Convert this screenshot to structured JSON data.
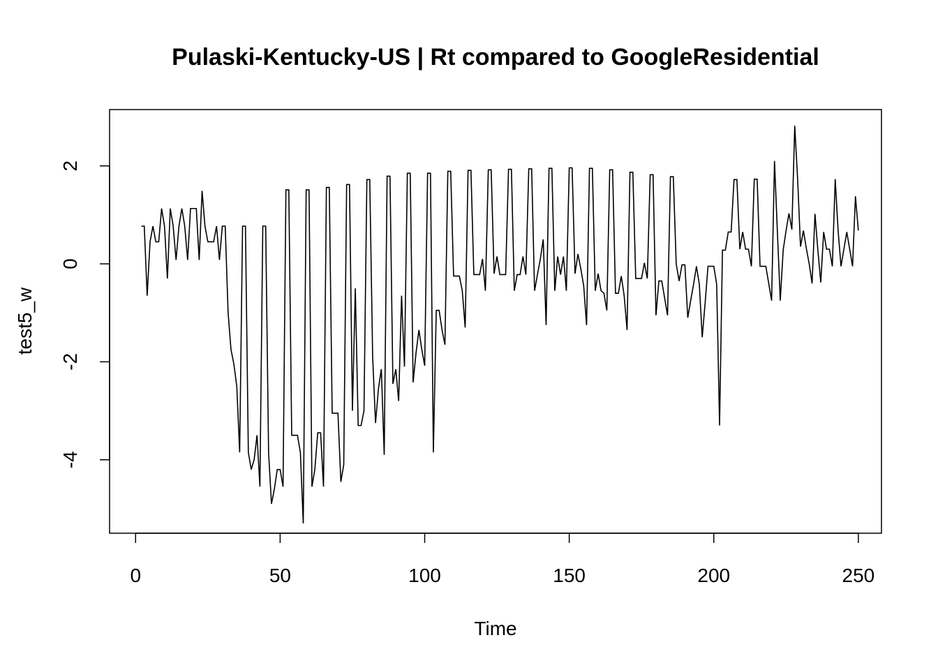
{
  "chart_data": {
    "type": "line",
    "title": "Pulaski-Kentucky-US | Rt compared to GoogleResidential",
    "xlabel": "Time",
    "ylabel": "test5_w",
    "xlim": [
      -9,
      258
    ],
    "ylim": [
      -5.5,
      3.15
    ],
    "x_ticks": [
      0,
      50,
      100,
      150,
      200,
      250
    ],
    "y_ticks": [
      -4,
      -2,
      0,
      2
    ],
    "grid": false,
    "series": [
      {
        "x_start": 2,
        "values": [
          0.77,
          0.77,
          -0.65,
          0.45,
          0.77,
          0.45,
          0.45,
          1.13,
          0.77,
          -0.3,
          1.13,
          0.77,
          0.08,
          0.77,
          1.13,
          0.77,
          0.08,
          1.13,
          1.13,
          1.13,
          0.08,
          1.49,
          0.77,
          0.45,
          0.45,
          0.45,
          0.77,
          0.08,
          0.77,
          0.77,
          -1.0,
          -1.75,
          -2.05,
          -2.5,
          -3.85,
          0.77,
          0.77,
          -3.85,
          -4.2,
          -4.0,
          -3.5,
          -4.55,
          0.77,
          0.77,
          -3.85,
          -4.9,
          -4.6,
          -4.2,
          -4.2,
          -4.55,
          1.51,
          1.51,
          -3.5,
          -3.5,
          -3.5,
          -3.85,
          -5.3,
          1.51,
          1.51,
          -4.55,
          -4.2,
          -3.45,
          -3.45,
          -4.55,
          1.56,
          1.56,
          -3.05,
          -3.05,
          -3.05,
          -4.45,
          -4.1,
          1.62,
          1.62,
          -3.0,
          -0.5,
          -3.3,
          -3.3,
          -3.0,
          1.72,
          1.72,
          -1.9,
          -3.25,
          -2.55,
          -2.15,
          -3.9,
          1.79,
          1.79,
          -2.45,
          -2.15,
          -2.8,
          -0.65,
          -2.1,
          1.85,
          1.85,
          -2.42,
          -1.82,
          -1.35,
          -1.75,
          -2.08,
          1.85,
          1.85,
          -3.85,
          -0.95,
          -0.95,
          -1.35,
          -1.65,
          1.89,
          1.89,
          -0.25,
          -0.25,
          -0.25,
          -0.55,
          -1.3,
          1.91,
          1.91,
          -0.22,
          -0.22,
          -0.22,
          0.1,
          -0.55,
          1.92,
          1.92,
          -0.2,
          0.15,
          -0.22,
          -0.22,
          -0.22,
          1.93,
          1.93,
          -0.55,
          -0.22,
          -0.22,
          0.15,
          -0.22,
          1.94,
          1.94,
          -0.55,
          -0.22,
          0.1,
          0.5,
          -1.25,
          1.95,
          1.95,
          -0.55,
          0.15,
          -0.22,
          0.15,
          -0.55,
          1.96,
          1.96,
          -0.2,
          0.2,
          -0.1,
          -0.45,
          -1.25,
          1.95,
          1.95,
          -0.55,
          -0.2,
          -0.55,
          -0.6,
          -0.95,
          1.92,
          1.92,
          -0.6,
          -0.6,
          -0.25,
          -0.65,
          -1.35,
          1.87,
          1.87,
          -0.3,
          -0.3,
          -0.3,
          0.02,
          -0.3,
          1.82,
          1.82,
          -1.05,
          -0.35,
          -0.35,
          -0.7,
          -1.05,
          1.78,
          1.78,
          0.0,
          -0.35,
          -0.02,
          -0.02,
          -1.1,
          -0.75,
          -0.42,
          -0.05,
          -0.42,
          -1.5,
          -0.8,
          -0.05,
          -0.05,
          -0.05,
          -0.42,
          -3.3,
          0.28,
          0.28,
          0.65,
          0.65,
          1.72,
          1.72,
          0.3,
          0.65,
          0.3,
          0.3,
          -0.05,
          1.73,
          1.73,
          -0.05,
          -0.05,
          -0.05,
          -0.4,
          -0.75,
          2.1,
          0.65,
          -0.75,
          0.28,
          0.68,
          1.03,
          0.7,
          2.82,
          1.73,
          0.35,
          0.68,
          0.32,
          0.0,
          -0.4,
          1.02,
          0.28,
          -0.38,
          0.65,
          0.3,
          0.3,
          -0.05,
          1.73,
          0.68,
          -0.05,
          0.3,
          0.65,
          0.3,
          -0.05,
          1.38,
          0.68
        ]
      }
    ]
  }
}
